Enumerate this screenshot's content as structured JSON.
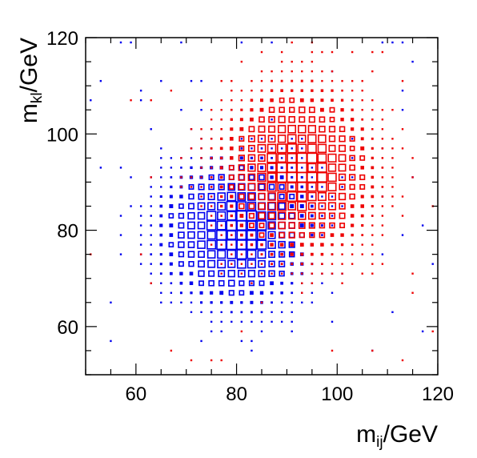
{
  "chart_data": {
    "type": "scatter",
    "style": "2D box histogram (box area proportional to bin content)",
    "title": "",
    "xlabel": "m_ij/GeV",
    "ylabel": "m_kl/GeV",
    "xlabel_parts": {
      "main": "m",
      "sub": "ij",
      "unit": "/GeV"
    },
    "ylabel_parts": {
      "main": "m",
      "sub": "kl",
      "unit": "/GeV"
    },
    "xlim": [
      50,
      120
    ],
    "ylim": [
      50,
      120
    ],
    "xticks": [
      60,
      80,
      100,
      120
    ],
    "yticks": [
      60,
      80,
      100,
      120
    ],
    "grid": false,
    "legend": "none",
    "bin_width": 2,
    "colors": {
      "series_1": "#0000ee",
      "series_2": "#ee0000"
    },
    "series": [
      {
        "color": "#0000ee",
        "peak": [
          80,
          80
        ],
        "sigma": [
          7.0,
          7.0
        ],
        "extent_x": [
          50,
          120
        ],
        "extent_y": [
          52,
          120
        ]
      },
      {
        "color": "#ee0000",
        "peak": [
          92,
          92
        ],
        "sigma": [
          7.0,
          8.0
        ],
        "extent_x": [
          50,
          120
        ],
        "extent_y": [
          52,
          120
        ]
      }
    ]
  }
}
